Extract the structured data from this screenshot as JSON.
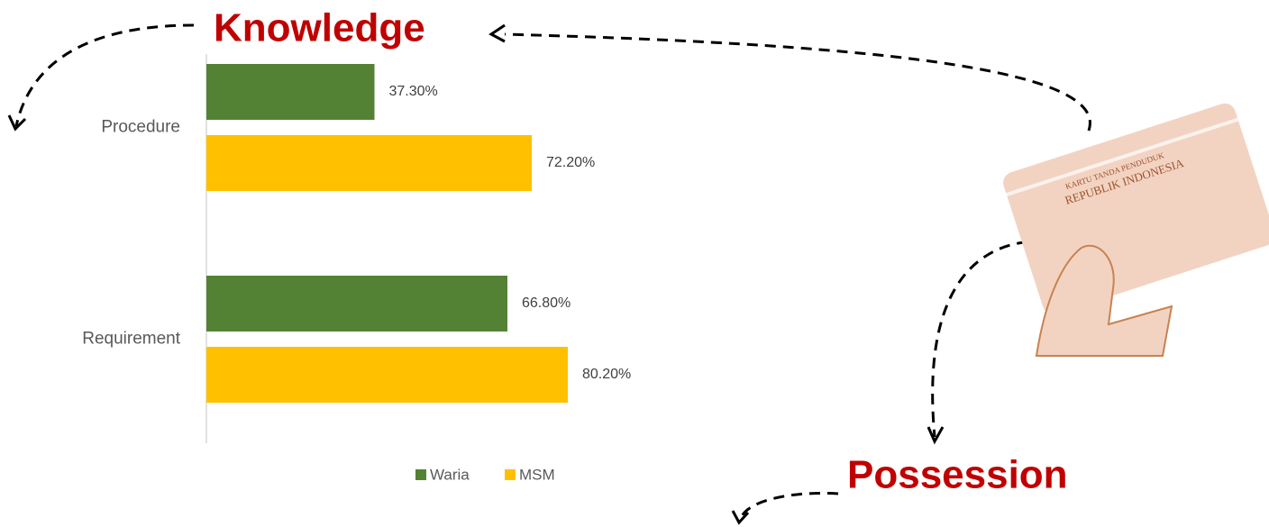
{
  "chart_data": {
    "type": "bar",
    "orientation": "horizontal",
    "annotations": [
      "Knowledge",
      "Possession"
    ],
    "card_text": [
      "KARTU TANDA PENDUDUK",
      "REPUBLIK INDONESIA"
    ],
    "categories": [
      "Procedure",
      "Requirement"
    ],
    "series": [
      {
        "name": "Waria",
        "color": "#548235",
        "values": [
          37.3,
          66.8
        ],
        "value_labels": [
          "37.30%",
          "66.80%"
        ]
      },
      {
        "name": "MSM",
        "color": "#ffc000",
        "values": [
          72.2,
          80.2
        ],
        "value_labels": [
          "72.20%",
          "80.20%"
        ]
      }
    ]
  }
}
